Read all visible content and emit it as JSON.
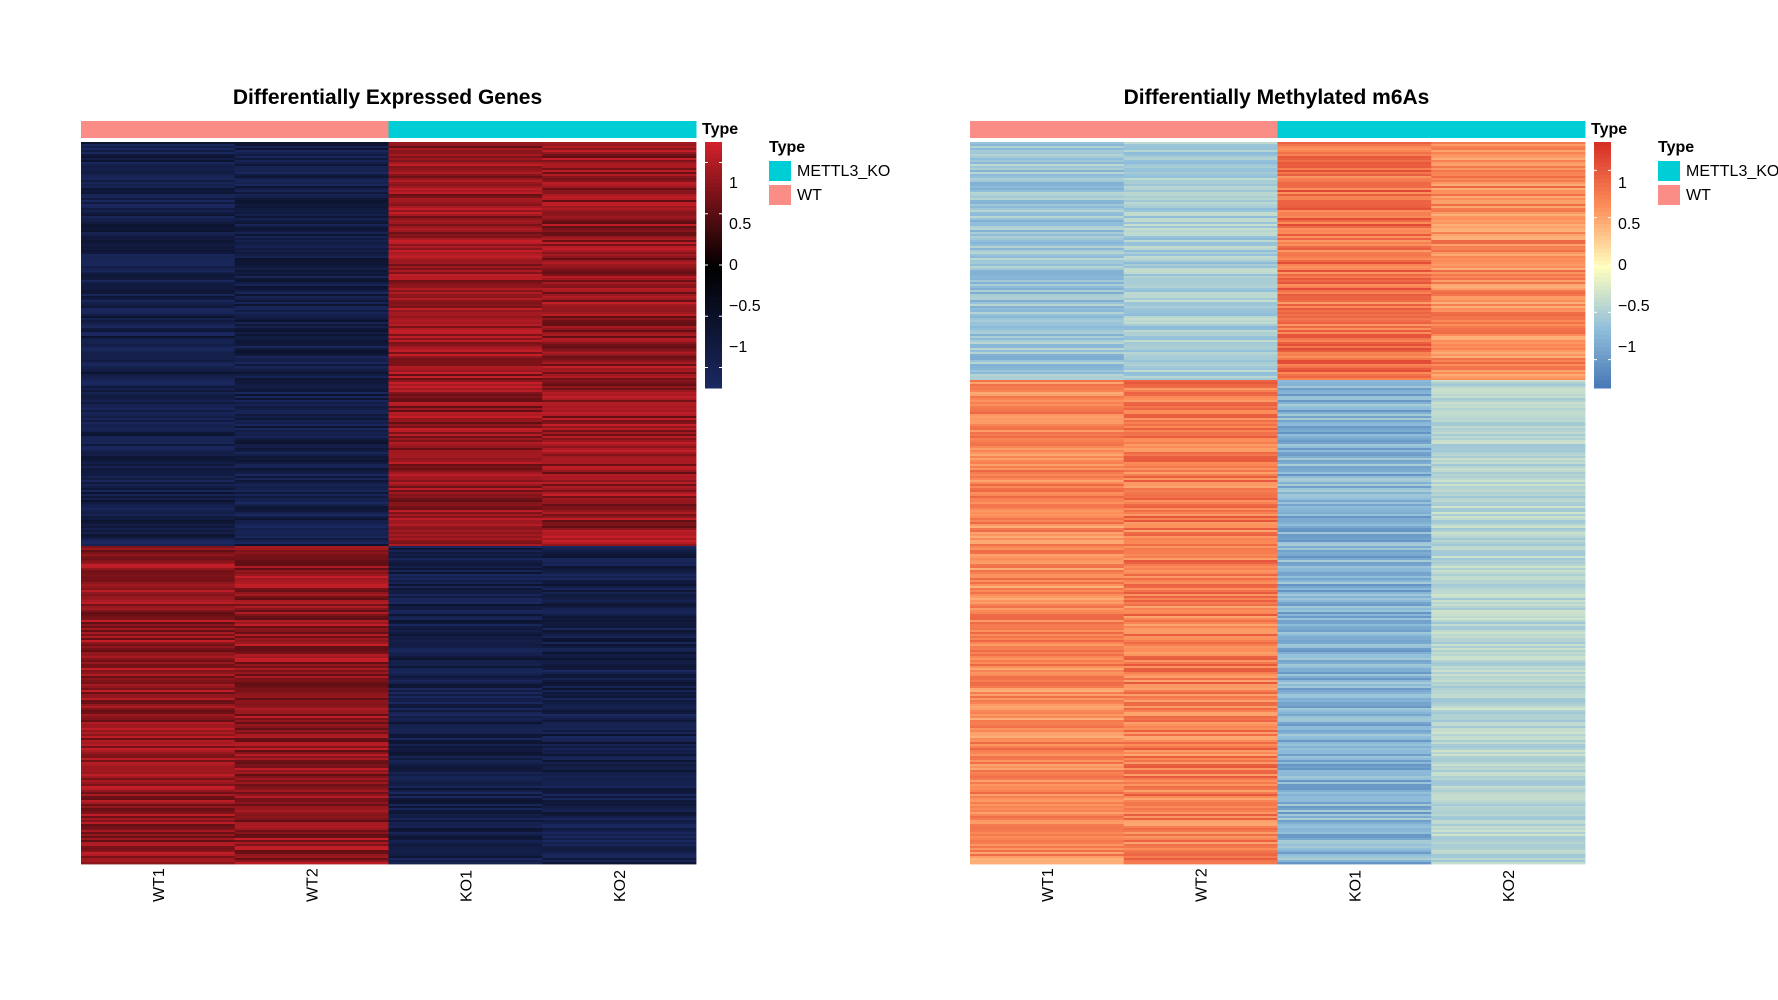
{
  "chart_data": [
    {
      "type": "heatmap",
      "title": "Differentially Expressed Genes",
      "columns": [
        "WT1",
        "WT2",
        "KO1",
        "KO2"
      ],
      "column_groups": [
        "WT",
        "WT",
        "METTL3_KO",
        "METTL3_KO"
      ],
      "annotation_title": "Type",
      "annotation_legend": [
        {
          "label": "METTL3_KO",
          "color": "#00CED6"
        },
        {
          "label": "WT",
          "color": "#FA8E86"
        }
      ],
      "row_clusters": [
        {
          "fraction": 0.56,
          "values": [
            -1,
            -1,
            1,
            1
          ]
        },
        {
          "fraction": 0.44,
          "values": [
            1,
            1,
            -1,
            -1
          ]
        }
      ],
      "colorbar": {
        "range": [
          -1.2,
          1.2
        ],
        "ticks": [
          {
            "value": 1,
            "label": "1"
          },
          {
            "value": 0.5,
            "label": "0.5"
          },
          {
            "value": 0,
            "label": "0"
          },
          {
            "value": -0.5,
            "label": "−0.5"
          },
          {
            "value": -1,
            "label": "−1"
          }
        ]
      },
      "colors": {
        "low": "#1B2A64",
        "mid": "#000000",
        "high": "#D0202A"
      }
    },
    {
      "type": "heatmap",
      "title": "Differentially Methylated m6As",
      "columns": [
        "WT1",
        "WT2",
        "KO1",
        "KO2"
      ],
      "column_groups": [
        "WT",
        "WT",
        "METTL3_KO",
        "METTL3_KO"
      ],
      "annotation_title": "Type",
      "annotation_legend": [
        {
          "label": "METTL3_KO",
          "color": "#00CED6"
        },
        {
          "label": "WT",
          "color": "#FA8E86"
        }
      ],
      "row_clusters": [
        {
          "fraction": 0.33,
          "values": [
            -0.7,
            -0.6,
            1,
            0.8
          ]
        },
        {
          "fraction": 0.67,
          "values": [
            0.8,
            0.9,
            -0.9,
            -0.5
          ]
        }
      ],
      "colorbar": {
        "range": [
          -1.3,
          1.3
        ],
        "ticks": [
          {
            "value": 1,
            "label": "1"
          },
          {
            "value": 0.5,
            "label": "0.5"
          },
          {
            "value": 0,
            "label": "0"
          },
          {
            "value": -0.5,
            "label": "−0.5"
          },
          {
            "value": -1,
            "label": "−1"
          }
        ]
      },
      "colors": {
        "low": "#4575B4",
        "lowmid": "#91BFDB",
        "mid": "#FFFFBF",
        "highmid": "#FC8D59",
        "high": "#D73027"
      }
    }
  ]
}
